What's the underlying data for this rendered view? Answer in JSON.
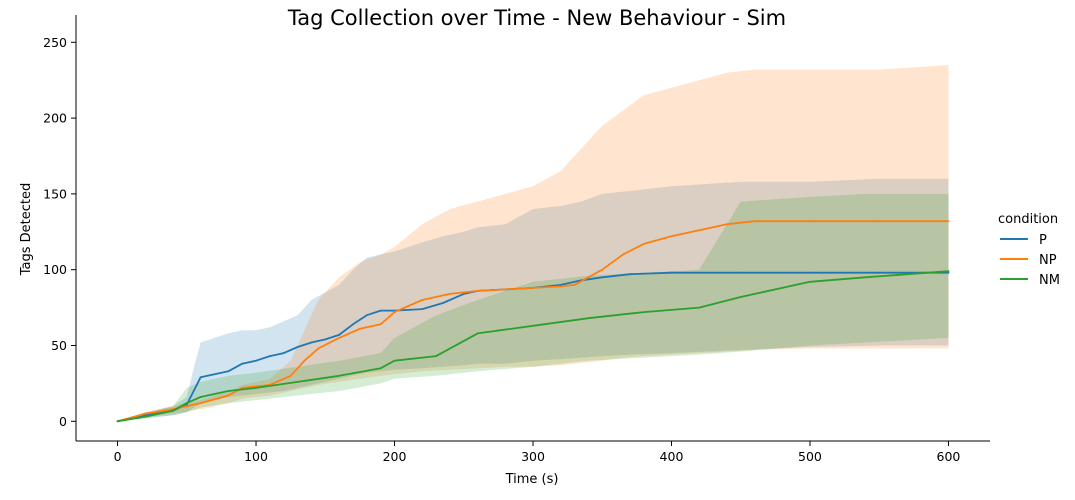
{
  "chart_data": {
    "type": "line",
    "title": "Tag Collection over Time - New Behaviour - Sim",
    "xlabel": "Time (s)",
    "ylabel": "Tags Detected",
    "xlim": [
      -30,
      630
    ],
    "ylim": [
      -13,
      268
    ],
    "xticks": [
      0,
      100,
      200,
      300,
      400,
      500,
      600
    ],
    "yticks": [
      0,
      50,
      100,
      150,
      200,
      250
    ],
    "grid": false,
    "legend": {
      "title": "condition",
      "placement": "right"
    },
    "series": [
      {
        "name": "P",
        "color": "#1f77b4",
        "x": [
          0,
          20,
          40,
          50,
          55,
          60,
          70,
          80,
          90,
          100,
          110,
          120,
          130,
          140,
          150,
          160,
          170,
          180,
          190,
          200,
          220,
          235,
          250,
          260,
          280,
          300,
          320,
          335,
          350,
          370,
          400,
          450,
          500,
          550,
          600
        ],
        "y": [
          0,
          4,
          7,
          11,
          20,
          29,
          31,
          33,
          38,
          40,
          43,
          45,
          49,
          52,
          54,
          57,
          64,
          70,
          73,
          73,
          74,
          78,
          84,
          86,
          87,
          88,
          90,
          93,
          95,
          97,
          98,
          98,
          98,
          98,
          98
        ],
        "upper": [
          0,
          6,
          10,
          16,
          35,
          52,
          55,
          58,
          60,
          60,
          62,
          66,
          70,
          80,
          85,
          90,
          100,
          108,
          110,
          112,
          118,
          122,
          125,
          128,
          130,
          140,
          142,
          145,
          150,
          152,
          155,
          158,
          158,
          160,
          160
        ],
        "lower": [
          0,
          2,
          4,
          6,
          9,
          12,
          14,
          16,
          17,
          18,
          19,
          20,
          22,
          24,
          26,
          28,
          30,
          32,
          33,
          34,
          35,
          36,
          37,
          38,
          38,
          40,
          41,
          42,
          43,
          44,
          45,
          47,
          49,
          50,
          50
        ]
      },
      {
        "name": "NP",
        "color": "#ff7f0e",
        "x": [
          0,
          20,
          40,
          60,
          80,
          90,
          110,
          125,
          135,
          145,
          160,
          175,
          190,
          200,
          220,
          240,
          260,
          280,
          300,
          320,
          330,
          350,
          365,
          380,
          400,
          420,
          440,
          460,
          500,
          550,
          600
        ],
        "y": [
          0,
          5,
          8,
          12,
          17,
          22,
          24,
          30,
          40,
          48,
          55,
          61,
          64,
          72,
          80,
          84,
          86,
          87,
          88,
          89,
          90,
          100,
          110,
          117,
          122,
          126,
          130,
          132,
          132,
          132,
          132
        ],
        "upper": [
          0,
          6,
          10,
          14,
          20,
          24,
          28,
          40,
          60,
          80,
          95,
          105,
          110,
          115,
          130,
          140,
          145,
          150,
          155,
          165,
          175,
          195,
          205,
          215,
          220,
          225,
          230,
          232,
          232,
          232,
          235
        ],
        "lower": [
          0,
          3,
          5,
          8,
          12,
          15,
          17,
          20,
          22,
          24,
          26,
          28,
          30,
          31,
          33,
          34,
          35,
          36,
          36,
          37,
          38,
          40,
          42,
          43,
          44,
          45,
          46,
          47,
          48,
          48,
          48
        ]
      },
      {
        "name": "NM",
        "color": "#2ca02c",
        "x": [
          0,
          20,
          40,
          50,
          60,
          80,
          100,
          130,
          160,
          190,
          200,
          230,
          260,
          300,
          340,
          380,
          420,
          450,
          500,
          540,
          600
        ],
        "y": [
          0,
          3,
          7,
          12,
          16,
          20,
          22,
          26,
          30,
          35,
          40,
          43,
          58,
          63,
          68,
          72,
          75,
          82,
          92,
          95,
          99
        ],
        "upper": [
          0,
          5,
          10,
          22,
          26,
          30,
          32,
          36,
          40,
          45,
          55,
          70,
          80,
          92,
          96,
          98,
          100,
          145,
          148,
          150,
          150
        ],
        "lower": [
          0,
          2,
          4,
          6,
          9,
          12,
          14,
          17,
          20,
          25,
          28,
          30,
          33,
          36,
          40,
          42,
          44,
          46,
          50,
          52,
          55
        ]
      }
    ]
  }
}
